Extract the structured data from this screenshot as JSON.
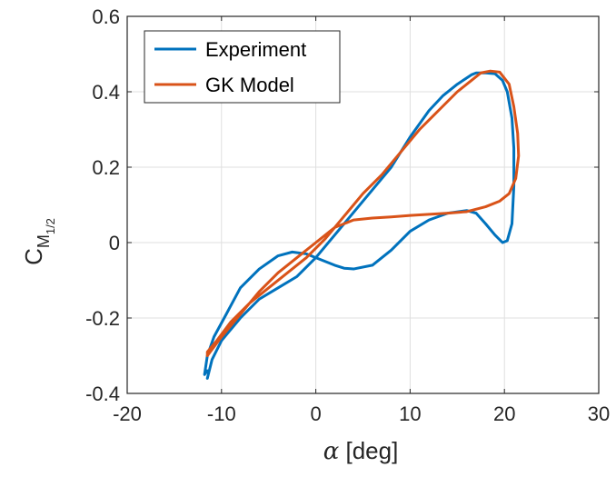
{
  "chart_data": {
    "type": "line",
    "title": "",
    "xlabel_symbol": "α",
    "xlabel_unit": " [deg]",
    "ylabel_main": "C",
    "ylabel_sub": "M",
    "ylabel_subsub": "1/2",
    "xlim": [
      -20,
      30
    ],
    "ylim": [
      -0.4,
      0.6
    ],
    "xticks": [
      -20,
      -10,
      0,
      10,
      20,
      30
    ],
    "xtick_labels": [
      "-20",
      "-10",
      "0",
      "10",
      "20",
      "30"
    ],
    "yticks": [
      -0.4,
      -0.2,
      0,
      0.2,
      0.4,
      0.6
    ],
    "ytick_labels": [
      "-0.4",
      "-0.2",
      "0",
      "0.2",
      "0.4",
      "0.6"
    ],
    "grid": true,
    "legend_position": "top-left",
    "series": [
      {
        "name": "Experiment",
        "color": "#0072BD",
        "x": [
          -11.5,
          -11.8,
          -11.5,
          -10.8,
          -9.5,
          -8.0,
          -6.0,
          -4.0,
          -2.5,
          -1.0,
          0.0,
          1.0,
          2.0,
          3.0,
          4.0,
          6.0,
          8.0,
          10.0,
          12.0,
          14.0,
          16.0,
          17.0,
          18.0,
          19.0,
          19.8,
          20.3,
          20.8,
          21.0,
          21.0,
          20.8,
          20.3,
          19.8,
          19.0,
          18.0,
          17.0,
          16.5,
          15.0,
          13.5,
          12.0,
          10.0,
          8.0,
          6.0,
          4.0,
          2.0,
          0.0,
          -2.0,
          -4.0,
          -6.0,
          -8.0,
          -10.0,
          -11.0,
          -11.5
        ],
        "y": [
          -0.34,
          -0.35,
          -0.3,
          -0.25,
          -0.19,
          -0.12,
          -0.07,
          -0.035,
          -0.025,
          -0.03,
          -0.04,
          -0.05,
          -0.06,
          -0.068,
          -0.07,
          -0.06,
          -0.02,
          0.03,
          0.06,
          0.078,
          0.085,
          0.078,
          0.05,
          0.02,
          0.0,
          0.005,
          0.05,
          0.15,
          0.25,
          0.33,
          0.4,
          0.43,
          0.448,
          0.45,
          0.45,
          0.445,
          0.42,
          0.39,
          0.35,
          0.28,
          0.2,
          0.14,
          0.08,
          0.02,
          -0.04,
          -0.09,
          -0.12,
          -0.15,
          -0.2,
          -0.26,
          -0.31,
          -0.36
        ]
      },
      {
        "name": "GK Model",
        "color": "#D95319",
        "x": [
          -11.5,
          -10.0,
          -8.0,
          -6.0,
          -4.0,
          -2.0,
          0.0,
          2.0,
          4.0,
          6.0,
          8.0,
          10.0,
          12.0,
          14.0,
          16.0,
          18.0,
          19.5,
          20.5,
          21.2,
          21.5,
          21.4,
          21.0,
          20.5,
          19.5,
          18.5,
          17.5,
          16.5,
          15.0,
          13.0,
          11.0,
          9.0,
          7.0,
          5.0,
          3.0,
          1.0,
          -1.0,
          -3.0,
          -5.0,
          -7.0,
          -9.0,
          -10.5,
          -11.5,
          -11.5
        ],
        "y": [
          -0.3,
          -0.25,
          -0.19,
          -0.13,
          -0.08,
          -0.04,
          0.0,
          0.04,
          0.06,
          0.065,
          0.068,
          0.072,
          0.075,
          0.078,
          0.082,
          0.095,
          0.11,
          0.13,
          0.17,
          0.23,
          0.29,
          0.36,
          0.42,
          0.452,
          0.455,
          0.45,
          0.43,
          0.4,
          0.35,
          0.3,
          0.24,
          0.18,
          0.13,
          0.07,
          0.01,
          -0.04,
          -0.08,
          -0.12,
          -0.16,
          -0.21,
          -0.26,
          -0.29,
          -0.3
        ]
      }
    ]
  }
}
